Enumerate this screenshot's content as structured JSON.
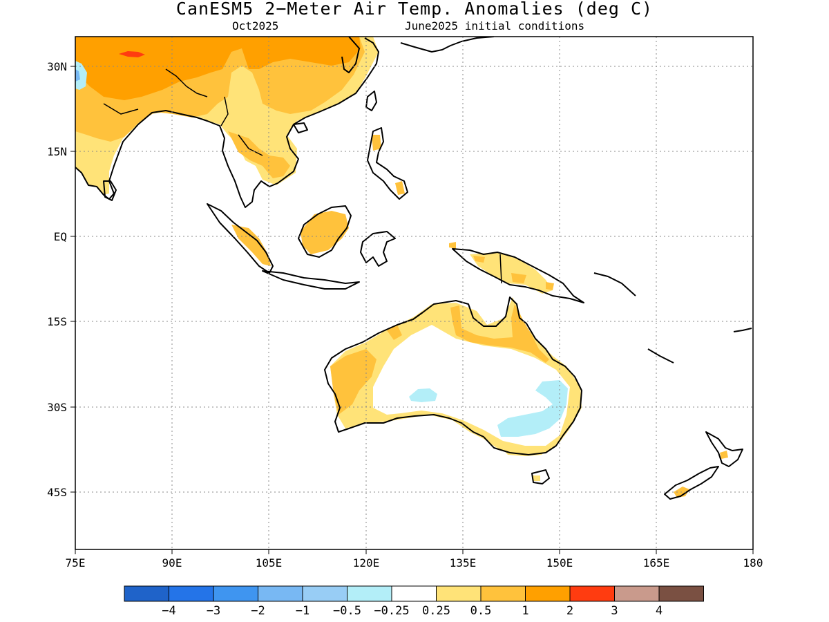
{
  "title": "CanESM5 2−Meter Air Temp. Anomalies (deg C)",
  "subtitle_left": "Oct2025",
  "subtitle_right": "June2025 initial conditions",
  "map": {
    "lon_range": [
      75,
      180
    ],
    "lat_range": [
      -52,
      35
    ],
    "lat_ticks": [
      "30N",
      "15N",
      "EQ",
      "15S",
      "30S",
      "45S"
    ],
    "lat_tick_values": [
      30,
      15,
      0,
      -15,
      -30,
      -45
    ],
    "lon_ticks": [
      "75E",
      "90E",
      "105E",
      "120E",
      "135E",
      "150E",
      "165E",
      "180"
    ],
    "lon_tick_values": [
      75,
      90,
      105,
      120,
      135,
      150,
      165,
      180
    ],
    "grid": "dotted"
  },
  "colorbar": {
    "colors": [
      "#1f63c9",
      "#2474e8",
      "#3f95f0",
      "#78b8f3",
      "#98cdf5",
      "#b3eef8",
      "#ffffff",
      "#ffe378",
      "#ffc23c",
      "#ffa000",
      "#ff3c10",
      "#c99a8c",
      "#7a5042"
    ],
    "labels": [
      "−4",
      "−3",
      "−2",
      "−1",
      "−0.5",
      "−0.25",
      "0.25",
      "0.5",
      "1",
      "2",
      "3",
      "4"
    ]
  },
  "anomaly_colors": {
    "weak_warm": "#ffe378",
    "moderate_warm": "#ffc23c",
    "strong_warm": "#ffa000",
    "extreme_warm": "#ff3c10",
    "weak_cool": "#b3eef8",
    "moderate_cool": "#98cdf5"
  }
}
